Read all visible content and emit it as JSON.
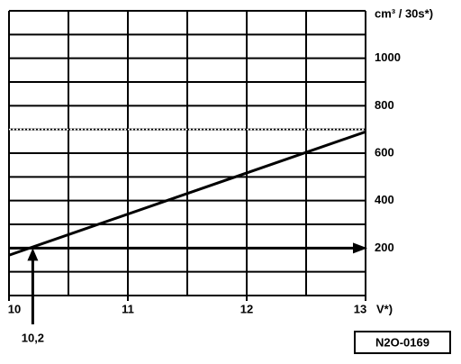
{
  "chart_data": {
    "type": "line",
    "y_label": "cm³ / 30s*)",
    "x_label": "V*)",
    "x": [
      10,
      13
    ],
    "series": [
      {
        "color": "#000000",
        "values": [
          170,
          690
        ]
      }
    ],
    "xlim": [
      10,
      13
    ],
    "ylim": [
      0,
      1200
    ],
    "xticks": [
      10,
      11,
      12,
      13
    ],
    "yticks": [
      200,
      400,
      600,
      800,
      1000
    ],
    "xgrid": [
      10,
      10.5,
      11,
      11.5,
      12,
      12.5,
      13
    ],
    "ygrid": [
      0,
      100,
      200,
      300,
      400,
      500,
      600,
      700,
      800,
      900,
      1000,
      1100,
      1200
    ],
    "reference_line": 700,
    "annotation": {
      "x": 10.2,
      "y": 200,
      "label": "10,2"
    },
    "figure_id": "N2O-0169"
  }
}
